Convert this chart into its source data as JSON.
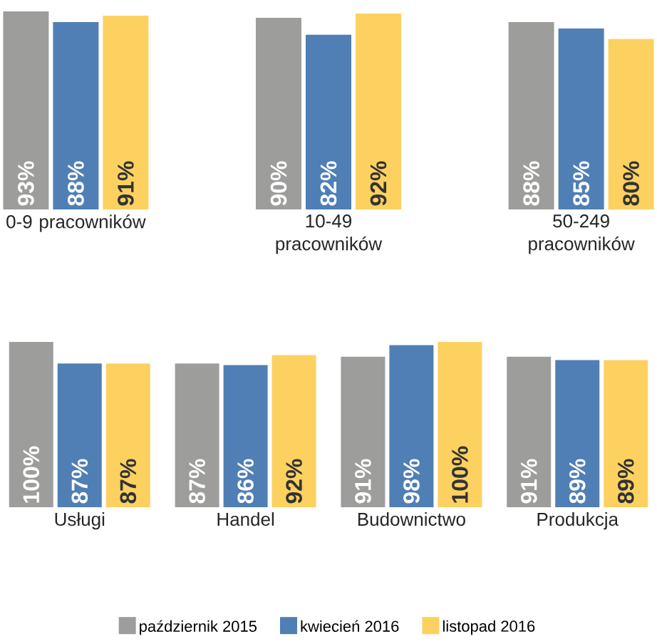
{
  "chart_data": [
    {
      "type": "bar",
      "categories": [
        "0-9 pracowników",
        "10-49 pracowników",
        "50-249 pracowników"
      ],
      "legend": false,
      "series": [
        {
          "color": "#9d9d9c",
          "values": [
            93,
            90,
            88
          ],
          "value_labels": [
            "93%",
            "90%",
            "88%"
          ]
        },
        {
          "color": "#4f7fb4",
          "values": [
            88,
            82,
            85
          ],
          "value_labels": [
            "88%",
            "82%",
            "85%"
          ]
        },
        {
          "color": "#fdd160",
          "values": [
            91,
            92,
            80
          ],
          "value_labels": [
            "91%",
            "92%",
            "80%"
          ]
        }
      ]
    },
    {
      "type": "bar",
      "categories": [
        "Usługi",
        "Handel",
        "Budownictwo",
        "Produkcja"
      ],
      "legend": "bottom",
      "series": [
        {
          "name": "październik 2015",
          "color": "#9d9d9c",
          "values": [
            100,
            87,
            91,
            91
          ],
          "value_labels": [
            "100%",
            "87%",
            "91%",
            "91%"
          ]
        },
        {
          "name": "kwiecień 2016",
          "color": "#4f7fb4",
          "values": [
            87,
            86,
            98,
            89
          ],
          "value_labels": [
            "87%",
            "86%",
            "98%",
            "89%"
          ]
        },
        {
          "name": "listopad 2016",
          "color": "#fdd160",
          "values": [
            87,
            92,
            100,
            89
          ],
          "value_labels": [
            "87%",
            "92%",
            "100%",
            "89%"
          ]
        }
      ]
    }
  ]
}
